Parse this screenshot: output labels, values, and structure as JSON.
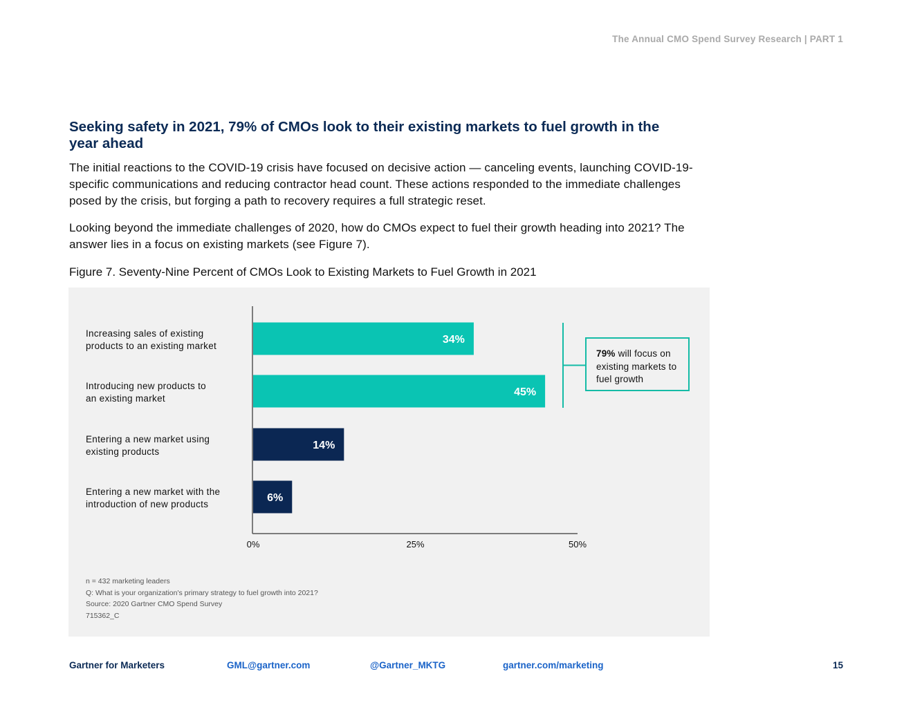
{
  "header": {
    "text": "The Annual CMO Spend Survey Research  |  PART 1"
  },
  "section": {
    "title": "Seeking safety in 2021, 79% of CMOs look to their existing markets to fuel growth in the year ahead",
    "paragraph1": "The initial reactions to the COVID-19 crisis have focused on decisive action — canceling events, launching COVID-19-specific communications and reducing contractor head count. These actions responded to the immediate challenges posed by the crisis, but forging a path to recovery requires a full strategic reset.",
    "paragraph2": "Looking beyond the immediate challenges of 2020, how do CMOs expect to fuel their growth heading into 2021? The answer lies in a focus on existing markets (see Figure 7)."
  },
  "figure": {
    "caption": "Figure 7. Seventy-Nine Percent of CMOs Look to Existing Markets to Fuel Growth in 2021",
    "callout": {
      "bold": "79%",
      "text": " will focus on existing markets to fuel growth"
    },
    "notes": [
      "n = 432 marketing leaders",
      "Q: What is your organization's primary strategy to fuel growth into 2021?",
      "Source: 2020 Gartner CMO Spend Survey",
      "715362_C"
    ]
  },
  "chart_data": {
    "type": "bar",
    "orientation": "horizontal",
    "categories": [
      [
        "Increasing sales of existing",
        "products to an existing market"
      ],
      [
        "Introducing new products to",
        "an existing market"
      ],
      [
        "Entering a new market using",
        "existing products"
      ],
      [
        "Entering a new market with the",
        "introduction of new products"
      ]
    ],
    "values": [
      34,
      45,
      14,
      6
    ],
    "value_labels": [
      "34%",
      "45%",
      "14%",
      "6%"
    ],
    "colors": [
      "#0ac4b3",
      "#0ac4b3",
      "#0b2753",
      "#0b2753"
    ],
    "xlim": [
      0,
      50
    ],
    "xticks": [
      0,
      25,
      50
    ],
    "xtick_labels": [
      "0%",
      "25%",
      "50%"
    ],
    "bracket_color": "#14bba6"
  },
  "footer": {
    "brand": "Gartner for Marketers",
    "email": "GML@gartner.com",
    "twitter": "@Gartner_MKTG",
    "site": "gartner.com/marketing",
    "page": "15"
  }
}
